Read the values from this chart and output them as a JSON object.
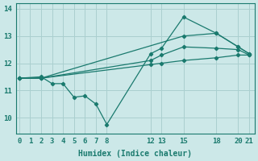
{
  "xlabel": "Humidex (Indice chaleur)",
  "background_color": "#cce8e8",
  "grid_color": "#aacfcf",
  "line_color": "#1a7a6e",
  "xticks": [
    0,
    1,
    2,
    3,
    4,
    5,
    6,
    7,
    8,
    12,
    13,
    15,
    18,
    20,
    21
  ],
  "yticks": [
    10,
    11,
    12,
    13,
    14
  ],
  "ylim": [
    9.4,
    14.2
  ],
  "xlim": [
    -0.3,
    21.5
  ],
  "lines": [
    {
      "x": [
        0,
        2,
        3,
        4,
        5,
        6,
        7,
        8,
        12,
        13,
        15,
        18,
        20,
        21
      ],
      "y": [
        11.45,
        11.5,
        11.25,
        11.25,
        10.75,
        10.8,
        10.5,
        9.75,
        12.35,
        12.55,
        13.7,
        13.1,
        12.6,
        12.35
      ]
    },
    {
      "x": [
        0,
        2,
        15,
        18,
        20,
        21
      ],
      "y": [
        11.45,
        11.45,
        13.0,
        13.1,
        12.6,
        12.35
      ]
    },
    {
      "x": [
        0,
        2,
        12,
        13,
        15,
        18,
        20,
        21
      ],
      "y": [
        11.45,
        11.45,
        12.1,
        12.3,
        12.6,
        12.55,
        12.5,
        12.3
      ]
    },
    {
      "x": [
        0,
        2,
        12,
        13,
        15,
        18,
        20,
        21
      ],
      "y": [
        11.45,
        11.45,
        11.95,
        12.0,
        12.1,
        12.2,
        12.3,
        12.3
      ]
    }
  ]
}
